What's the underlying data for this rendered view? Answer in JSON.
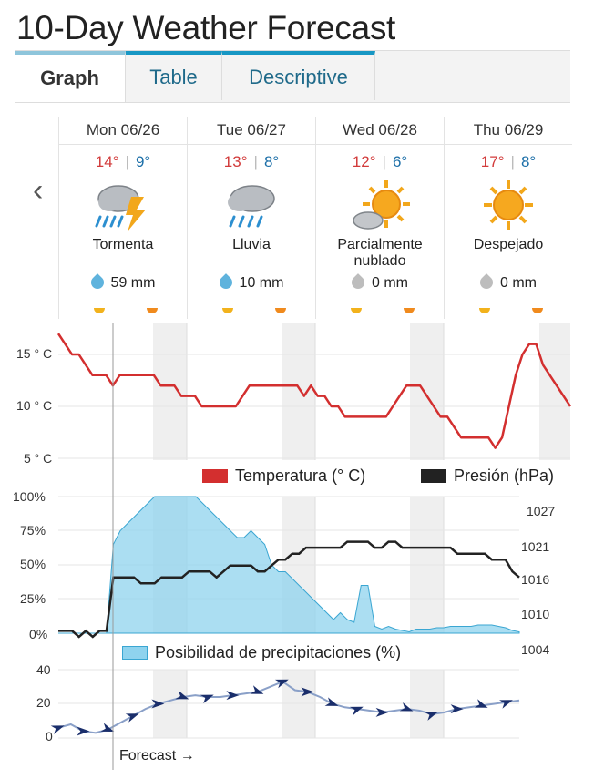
{
  "page": {
    "title": "10-Day Weather Forecast"
  },
  "tabs": [
    {
      "label": "Graph",
      "active": true
    },
    {
      "label": "Table",
      "active": false
    },
    {
      "label": "Descriptive",
      "active": false
    }
  ],
  "nav": {
    "prev_icon": "chevron-left-icon"
  },
  "days": [
    {
      "date": "Mon 06/26",
      "hi": "14°",
      "lo": "9°",
      "condition": "Tormenta",
      "icon": "thunderstorm-icon",
      "precip": "59 mm",
      "drop_color": "#5fb3dd"
    },
    {
      "date": "Tue 06/27",
      "hi": "13°",
      "lo": "8°",
      "condition": "Lluvia",
      "icon": "rain-icon",
      "precip": "10 mm",
      "drop_color": "#5fb3dd"
    },
    {
      "date": "Wed 06/28",
      "hi": "12°",
      "lo": "6°",
      "condition": "Parcialmente nublado",
      "icon": "partly-cloudy-icon",
      "precip": "0 mm",
      "drop_color": "#bdbdbd"
    },
    {
      "date": "Thu 06/29",
      "hi": "17°",
      "lo": "8°",
      "condition": "Despejado",
      "icon": "sunny-icon",
      "precip": "0 mm",
      "drop_color": "#bdbdbd"
    }
  ],
  "legends": {
    "temperature": "Temperatura (° C)",
    "pressure": "Presión (hPa)",
    "precip_chance": "Posibilidad de precipitaciones (%)"
  },
  "forecast_label": "Forecast →",
  "colors": {
    "temp_line": "#d32f2f",
    "pressure_line": "#222222",
    "precip_fill": "#8fd3ee",
    "precip_stroke": "#3aa6d2",
    "wind_line": "#8aa0c8",
    "wind_arrow": "#1a2e6b",
    "accent_tab": "#1797c4"
  },
  "chart_data": [
    {
      "type": "line",
      "series": [
        {
          "name": "Temperatura (° C)",
          "values": [
            17,
            16,
            15,
            15,
            14,
            13,
            13,
            13,
            12,
            13,
            13,
            13,
            13,
            13,
            13,
            12,
            12,
            12,
            11,
            11,
            11,
            10,
            10,
            10,
            10,
            10,
            10,
            11,
            12,
            12,
            12,
            12,
            12,
            12,
            12,
            12,
            11,
            12,
            11,
            11,
            10,
            10,
            9,
            9,
            9,
            9,
            9,
            9,
            9,
            10,
            11,
            12,
            12,
            12,
            11,
            10,
            9,
            9,
            8,
            7,
            7,
            7,
            7,
            7,
            6,
            7,
            10,
            13,
            15,
            16,
            16,
            14,
            13,
            12,
            11,
            10
          ]
        }
      ],
      "yticks": [
        "5 ° C",
        "10 ° C",
        "15 ° C"
      ],
      "ylim": [
        4,
        18
      ]
    },
    {
      "type": "area",
      "series": [
        {
          "name": "Posibilidad de precipitaciones (%)",
          "values": [
            0,
            0,
            0,
            0,
            0,
            0,
            0,
            0,
            65,
            75,
            80,
            85,
            90,
            95,
            100,
            100,
            100,
            100,
            100,
            100,
            100,
            95,
            90,
            85,
            80,
            75,
            70,
            70,
            75,
            70,
            65,
            50,
            45,
            45,
            40,
            35,
            30,
            25,
            20,
            15,
            10,
            15,
            10,
            8,
            35,
            35,
            5,
            3,
            5,
            3,
            2,
            1,
            3,
            3,
            3,
            4,
            4,
            5,
            5,
            5,
            5,
            6,
            6,
            6,
            5,
            4,
            2,
            1
          ]
        },
        {
          "name": "Presión (hPa)",
          "values": [
            1007,
            1007,
            1007,
            1006,
            1007,
            1006,
            1007,
            1007,
            1016,
            1016,
            1016,
            1016,
            1015,
            1015,
            1015,
            1016,
            1016,
            1016,
            1016,
            1017,
            1017,
            1017,
            1017,
            1016,
            1017,
            1018,
            1018,
            1018,
            1018,
            1017,
            1017,
            1018,
            1019,
            1019,
            1020,
            1020,
            1021,
            1021,
            1021,
            1021,
            1021,
            1021,
            1022,
            1022,
            1022,
            1022,
            1021,
            1021,
            1022,
            1022,
            1021,
            1021,
            1021,
            1021,
            1021,
            1021,
            1021,
            1021,
            1020,
            1020,
            1020,
            1020,
            1020,
            1019,
            1019,
            1019,
            1017,
            1016
          ]
        }
      ],
      "yticks_left": [
        "0%",
        "25%",
        "50%",
        "75%",
        "100%"
      ],
      "yticks_right": [
        "1004",
        "1010",
        "1016",
        "1021",
        "1027"
      ],
      "ylim_left": [
        0,
        100
      ],
      "ylim_right": [
        1004,
        1027
      ]
    },
    {
      "type": "line",
      "series": [
        {
          "name": "",
          "values": [
            6,
            8,
            4,
            3,
            5,
            9,
            13,
            17,
            20,
            22,
            24,
            25,
            24,
            24,
            25,
            26,
            27,
            30,
            33,
            28,
            27,
            24,
            20,
            18,
            17,
            16,
            15,
            16,
            17,
            16,
            14,
            15,
            17,
            18,
            19,
            20,
            21,
            22
          ]
        }
      ],
      "yticks": [
        "0",
        "20",
        "40"
      ],
      "ylim": [
        0,
        40
      ]
    }
  ]
}
